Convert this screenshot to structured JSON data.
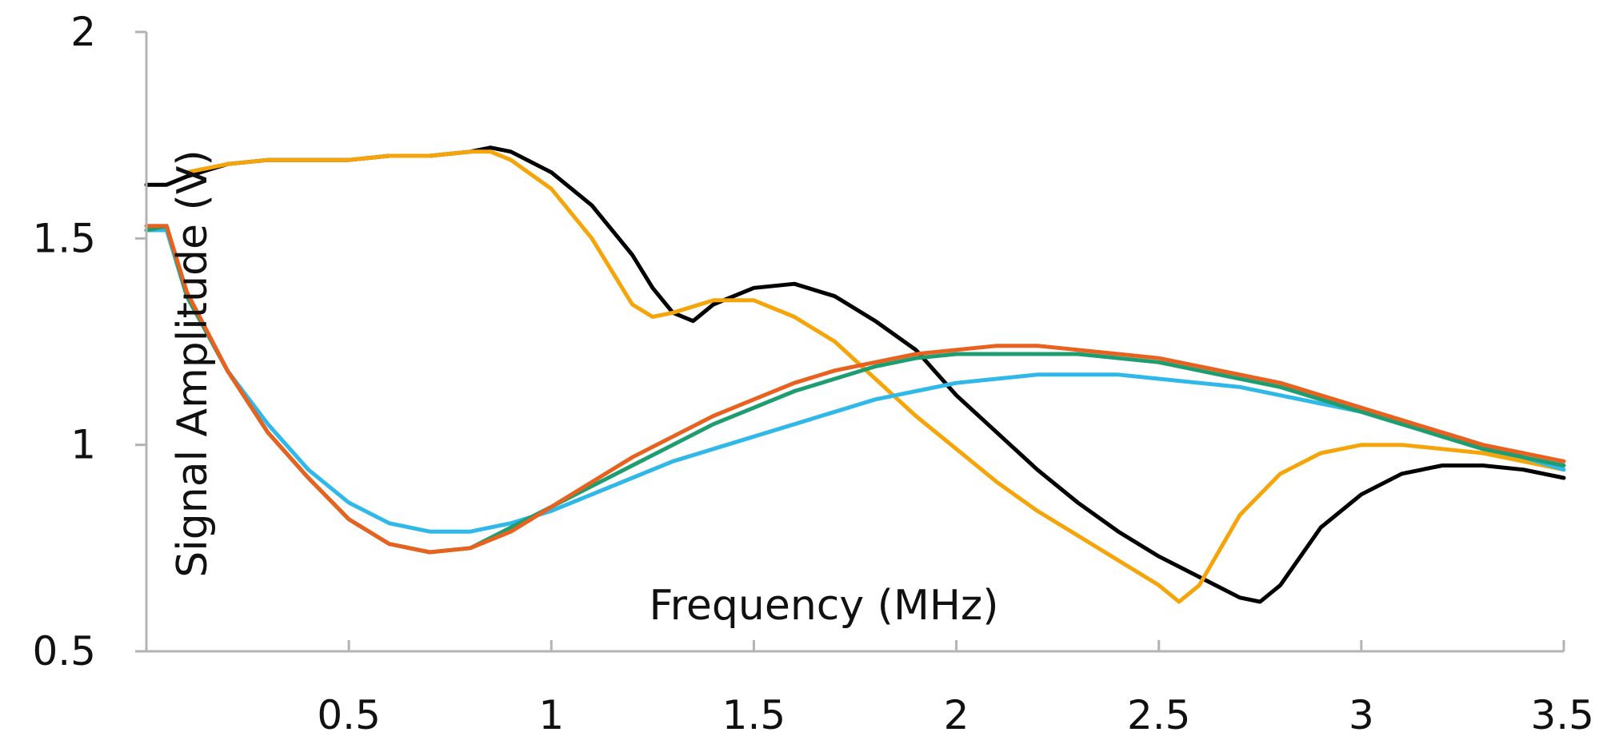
{
  "chart_data": {
    "type": "line",
    "title": "",
    "xlabel": "Frequency (MHz)",
    "ylabel": "Signal Amplitude (V)",
    "xlim": [
      0,
      3.5
    ],
    "ylim": [
      0.5,
      2
    ],
    "xticks": [
      0.5,
      1,
      1.5,
      2,
      2.5,
      3,
      3.5
    ],
    "xtick_labels": [
      "0.5",
      "1",
      "1.5",
      "2",
      "2.5",
      "3",
      "3.5"
    ],
    "yticks": [
      0.5,
      1,
      1.5,
      2
    ],
    "ytick_labels": [
      "0.5",
      "1",
      "1.5",
      "2"
    ],
    "grid": false,
    "legend": "none",
    "series": [
      {
        "color": "#000000",
        "x": [
          0.0,
          0.05,
          0.1,
          0.2,
          0.3,
          0.4,
          0.5,
          0.6,
          0.7,
          0.8,
          0.85,
          0.9,
          1.0,
          1.1,
          1.2,
          1.25,
          1.3,
          1.35,
          1.4,
          1.5,
          1.6,
          1.7,
          1.8,
          1.9,
          2.0,
          2.1,
          2.2,
          2.3,
          2.4,
          2.5,
          2.6,
          2.7,
          2.75,
          2.8,
          2.9,
          3.0,
          3.1,
          3.2,
          3.3,
          3.4,
          3.5
        ],
        "y": [
          1.63,
          1.63,
          1.65,
          1.68,
          1.69,
          1.69,
          1.69,
          1.7,
          1.7,
          1.71,
          1.72,
          1.71,
          1.66,
          1.58,
          1.46,
          1.38,
          1.32,
          1.3,
          1.34,
          1.38,
          1.39,
          1.36,
          1.3,
          1.23,
          1.12,
          1.03,
          0.94,
          0.86,
          0.79,
          0.73,
          0.68,
          0.63,
          0.62,
          0.66,
          0.8,
          0.88,
          0.93,
          0.95,
          0.95,
          0.94,
          0.92
        ]
      },
      {
        "color": "#f5a50a",
        "x": [
          0.1,
          0.2,
          0.3,
          0.4,
          0.5,
          0.6,
          0.7,
          0.8,
          0.85,
          0.9,
          1.0,
          1.1,
          1.15,
          1.2,
          1.25,
          1.3,
          1.4,
          1.5,
          1.6,
          1.7,
          1.8,
          1.9,
          2.0,
          2.1,
          2.2,
          2.3,
          2.4,
          2.5,
          2.55,
          2.6,
          2.7,
          2.8,
          2.9,
          3.0,
          3.1,
          3.2,
          3.3,
          3.4,
          3.5
        ],
        "y": [
          1.66,
          1.68,
          1.69,
          1.69,
          1.69,
          1.7,
          1.7,
          1.71,
          1.71,
          1.69,
          1.62,
          1.5,
          1.42,
          1.34,
          1.31,
          1.32,
          1.35,
          1.35,
          1.31,
          1.25,
          1.16,
          1.07,
          0.99,
          0.91,
          0.84,
          0.78,
          0.72,
          0.66,
          0.62,
          0.66,
          0.83,
          0.93,
          0.98,
          1.0,
          1.0,
          0.99,
          0.98,
          0.96,
          0.94
        ]
      },
      {
        "color": "#2fb8e8",
        "x": [
          0.0,
          0.05,
          0.1,
          0.2,
          0.3,
          0.4,
          0.5,
          0.6,
          0.7,
          0.8,
          0.9,
          1.0,
          1.1,
          1.2,
          1.3,
          1.4,
          1.5,
          1.6,
          1.7,
          1.8,
          1.9,
          2.0,
          2.1,
          2.2,
          2.3,
          2.4,
          2.5,
          2.6,
          2.7,
          2.8,
          2.9,
          3.0,
          3.1,
          3.2,
          3.3,
          3.4,
          3.5
        ],
        "y": [
          1.52,
          1.52,
          1.36,
          1.18,
          1.05,
          0.94,
          0.86,
          0.81,
          0.79,
          0.79,
          0.81,
          0.84,
          0.88,
          0.92,
          0.96,
          0.99,
          1.02,
          1.05,
          1.08,
          1.11,
          1.13,
          1.15,
          1.16,
          1.17,
          1.17,
          1.17,
          1.16,
          1.15,
          1.14,
          1.12,
          1.1,
          1.08,
          1.05,
          1.03,
          1.0,
          0.97,
          0.94
        ]
      },
      {
        "color": "#1e9e70",
        "x": [
          0.0,
          0.05,
          0.1,
          0.2,
          0.3,
          0.4,
          0.5,
          0.6,
          0.7,
          0.8,
          0.9,
          1.0,
          1.1,
          1.2,
          1.3,
          1.4,
          1.5,
          1.6,
          1.7,
          1.8,
          1.9,
          2.0,
          2.1,
          2.2,
          2.3,
          2.4,
          2.5,
          2.6,
          2.7,
          2.8,
          2.9,
          3.0,
          3.1,
          3.2,
          3.3,
          3.4,
          3.5
        ],
        "y": [
          1.52,
          1.53,
          1.36,
          1.18,
          1.03,
          0.92,
          0.82,
          0.76,
          0.74,
          0.75,
          0.8,
          0.85,
          0.9,
          0.95,
          1.0,
          1.05,
          1.09,
          1.13,
          1.16,
          1.19,
          1.21,
          1.22,
          1.22,
          1.22,
          1.22,
          1.21,
          1.2,
          1.18,
          1.16,
          1.14,
          1.11,
          1.08,
          1.05,
          1.02,
          0.99,
          0.97,
          0.95
        ]
      },
      {
        "color": "#e8611f",
        "x": [
          0.0,
          0.05,
          0.1,
          0.2,
          0.3,
          0.4,
          0.5,
          0.6,
          0.7,
          0.8,
          0.9,
          1.0,
          1.1,
          1.2,
          1.3,
          1.4,
          1.5,
          1.6,
          1.7,
          1.8,
          1.9,
          2.0,
          2.1,
          2.2,
          2.3,
          2.4,
          2.5,
          2.6,
          2.7,
          2.8,
          2.9,
          3.0,
          3.1,
          3.2,
          3.3,
          3.4,
          3.5
        ],
        "y": [
          1.53,
          1.53,
          1.37,
          1.18,
          1.03,
          0.92,
          0.82,
          0.76,
          0.74,
          0.75,
          0.79,
          0.85,
          0.91,
          0.97,
          1.02,
          1.07,
          1.11,
          1.15,
          1.18,
          1.2,
          1.22,
          1.23,
          1.24,
          1.24,
          1.23,
          1.22,
          1.21,
          1.19,
          1.17,
          1.15,
          1.12,
          1.09,
          1.06,
          1.03,
          1.0,
          0.98,
          0.96
        ]
      }
    ]
  }
}
